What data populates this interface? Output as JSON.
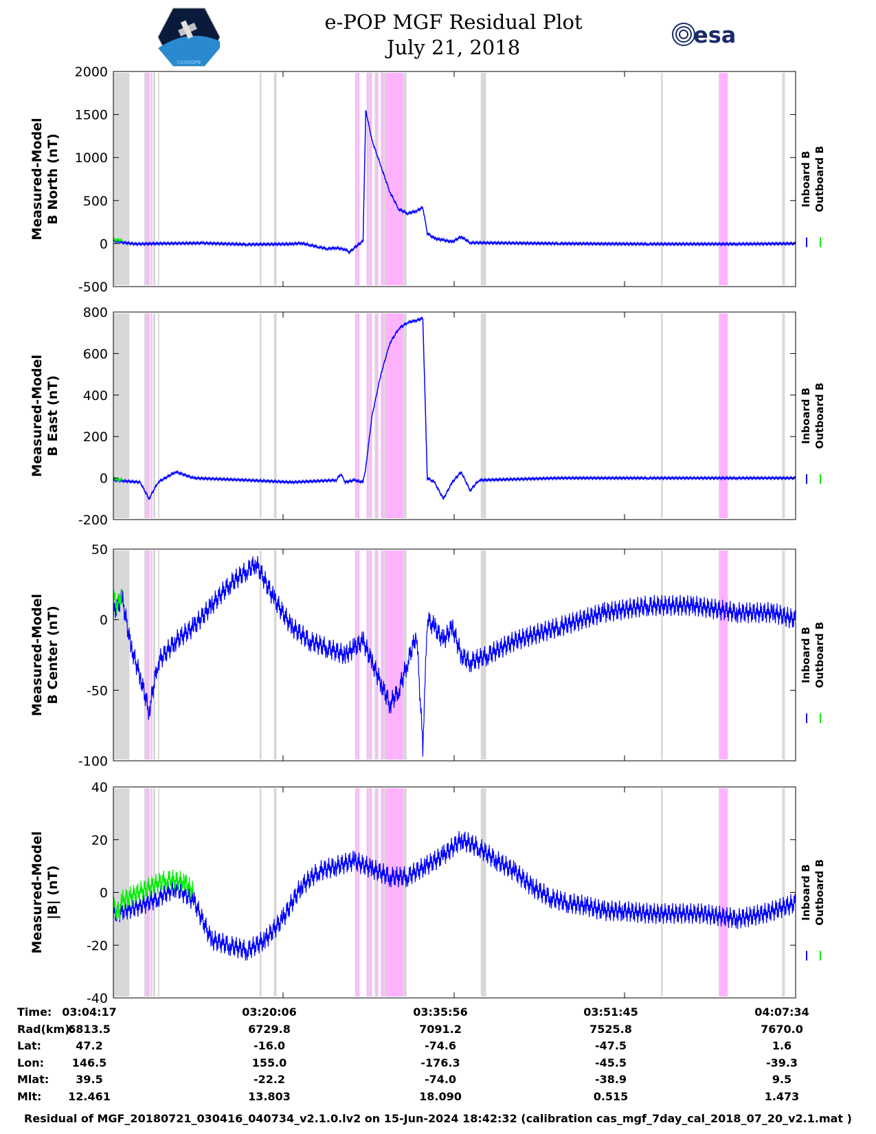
{
  "header": {
    "title": "e-POP MGF Residual Plot",
    "date": "July 21, 2018",
    "esa_logo_text": "esa",
    "cassiope_logo_text": "CASSIOPE"
  },
  "colors": {
    "inboard": "#0000ff",
    "outboard": "#00ee00",
    "gray_band": "#d8d8d8",
    "magenta_band": "#ffb3ff"
  },
  "legend": {
    "inboard": "Inboard B",
    "outboard": "Outboard B"
  },
  "chart_data": [
    {
      "type": "line",
      "id": "b-north",
      "ylabel": [
        "Measured-Model",
        "B North (nT)"
      ],
      "ylim": [
        -500,
        2000
      ],
      "yticks": [
        -500,
        0,
        500,
        1000,
        1500,
        2000
      ],
      "xlim_seconds": [
        0,
        3797
      ],
      "series": [
        {
          "name": "Inboard B",
          "color": "#0000ff",
          "points": [
            [
              0,
              35
            ],
            [
              120,
              10
            ],
            [
              250,
              -5
            ],
            [
              500,
              0
            ],
            [
              1000,
              5
            ],
            [
              1500,
              -10
            ],
            [
              2000,
              -5
            ],
            [
              2100,
              5
            ],
            [
              2200,
              -15
            ],
            [
              2300,
              -40
            ],
            [
              2400,
              -60
            ],
            [
              2500,
              -50
            ],
            [
              2600,
              -70
            ],
            [
              2650,
              -100
            ],
            [
              2700,
              -50
            ],
            [
              2800,
              30
            ],
            [
              2830,
              1550
            ],
            [
              2900,
              1200
            ],
            [
              3000,
              900
            ],
            [
              3100,
              600
            ],
            [
              3200,
              400
            ],
            [
              3300,
              350
            ],
            [
              3400,
              380
            ],
            [
              3470,
              420
            ],
            [
              3520,
              120
            ],
            [
              3600,
              60
            ],
            [
              3700,
              40
            ],
            [
              3800,
              20
            ],
            [
              3900,
              80
            ],
            [
              4000,
              10
            ],
            [
              5000,
              0
            ],
            [
              6000,
              -5
            ],
            [
              7000,
              -5
            ],
            [
              7650,
              0
            ]
          ]
        },
        {
          "name": "Outboard B",
          "color": "#00ee00",
          "points": [
            [
              0,
              45
            ],
            [
              60,
              40
            ],
            [
              100,
              35
            ]
          ]
        }
      ]
    },
    {
      "type": "line",
      "id": "b-east",
      "ylabel": [
        "Measured-Model",
        "B East (nT)"
      ],
      "ylim": [
        -200,
        800
      ],
      "yticks": [
        -200,
        0,
        200,
        400,
        600,
        800
      ],
      "series": [
        {
          "name": "Inboard B",
          "color": "#0000ff",
          "points": [
            [
              0,
              -10
            ],
            [
              300,
              -20
            ],
            [
              400,
              -100
            ],
            [
              500,
              -20
            ],
            [
              700,
              30
            ],
            [
              900,
              0
            ],
            [
              1500,
              -10
            ],
            [
              2000,
              -20
            ],
            [
              2500,
              -10
            ],
            [
              2550,
              20
            ],
            [
              2600,
              -20
            ],
            [
              2700,
              -10
            ],
            [
              2800,
              -20
            ],
            [
              2830,
              50
            ],
            [
              2900,
              300
            ],
            [
              3000,
              500
            ],
            [
              3100,
              650
            ],
            [
              3200,
              720
            ],
            [
              3300,
              750
            ],
            [
              3400,
              760
            ],
            [
              3470,
              770
            ],
            [
              3520,
              0
            ],
            [
              3600,
              -20
            ],
            [
              3700,
              -100
            ],
            [
              3800,
              -20
            ],
            [
              3900,
              30
            ],
            [
              4000,
              -60
            ],
            [
              4100,
              -10
            ],
            [
              5000,
              0
            ],
            [
              6000,
              0
            ],
            [
              7000,
              0
            ],
            [
              7650,
              0
            ]
          ]
        },
        {
          "name": "Outboard B",
          "color": "#00ee00",
          "points": [
            [
              0,
              0
            ],
            [
              60,
              -10
            ],
            [
              100,
              -5
            ]
          ]
        }
      ]
    },
    {
      "type": "line",
      "id": "b-center",
      "ylabel": [
        "Measured-Model",
        "B Center (nT)"
      ],
      "ylim": [
        -100,
        50
      ],
      "yticks": [
        -100,
        -50,
        0,
        50
      ],
      "series": [
        {
          "name": "Inboard B",
          "color": "#0000ff",
          "points": [
            [
              0,
              5
            ],
            [
              100,
              15
            ],
            [
              200,
              -20
            ],
            [
              300,
              -40
            ],
            [
              400,
              -65
            ],
            [
              500,
              -30
            ],
            [
              700,
              -15
            ],
            [
              900,
              -5
            ],
            [
              1100,
              10
            ],
            [
              1300,
              25
            ],
            [
              1500,
              35
            ],
            [
              1600,
              40
            ],
            [
              1800,
              15
            ],
            [
              2000,
              -5
            ],
            [
              2200,
              -15
            ],
            [
              2400,
              -20
            ],
            [
              2600,
              -25
            ],
            [
              2700,
              -20
            ],
            [
              2800,
              -15
            ],
            [
              2900,
              -30
            ],
            [
              3000,
              -45
            ],
            [
              3100,
              -60
            ],
            [
              3200,
              -50
            ],
            [
              3300,
              -30
            ],
            [
              3400,
              -10
            ],
            [
              3470,
              -90
            ],
            [
              3520,
              0
            ],
            [
              3600,
              -5
            ],
            [
              3700,
              -15
            ],
            [
              3800,
              -5
            ],
            [
              3900,
              -25
            ],
            [
              4000,
              -30
            ],
            [
              4200,
              -25
            ],
            [
              4500,
              -15
            ],
            [
              5000,
              -5
            ],
            [
              5500,
              5
            ],
            [
              6000,
              10
            ],
            [
              6500,
              10
            ],
            [
              7000,
              5
            ],
            [
              7400,
              5
            ],
            [
              7650,
              0
            ]
          ]
        },
        {
          "name": "Outboard B",
          "color": "#00ee00",
          "points": [
            [
              0,
              15
            ],
            [
              50,
              10
            ],
            [
              100,
              20
            ]
          ]
        }
      ]
    },
    {
      "type": "line",
      "id": "b-magnitude",
      "ylabel": [
        "Measured-Model",
        "|B| (nT)"
      ],
      "ylim": [
        -40,
        40
      ],
      "yticks": [
        -40,
        -20,
        0,
        20,
        40
      ],
      "series": [
        {
          "name": "Inboard B",
          "color": "#0000ff",
          "points": [
            [
              0,
              -8
            ],
            [
              300,
              -5
            ],
            [
              500,
              -2
            ],
            [
              700,
              2
            ],
            [
              900,
              -3
            ],
            [
              1100,
              -18
            ],
            [
              1300,
              -20
            ],
            [
              1500,
              -22
            ],
            [
              1700,
              -18
            ],
            [
              1900,
              -10
            ],
            [
              2100,
              2
            ],
            [
              2300,
              8
            ],
            [
              2500,
              10
            ],
            [
              2700,
              12
            ],
            [
              2900,
              9
            ],
            [
              3100,
              6
            ],
            [
              3300,
              6
            ],
            [
              3500,
              10
            ],
            [
              3700,
              14
            ],
            [
              3900,
              20
            ],
            [
              4100,
              17
            ],
            [
              4300,
              12
            ],
            [
              4500,
              8
            ],
            [
              4700,
              2
            ],
            [
              4900,
              -2
            ],
            [
              5100,
              -4
            ],
            [
              5300,
              -5
            ],
            [
              5500,
              -7
            ],
            [
              5700,
              -7
            ],
            [
              6000,
              -8
            ],
            [
              6300,
              -8
            ],
            [
              6600,
              -8
            ],
            [
              7000,
              -10
            ],
            [
              7300,
              -8
            ],
            [
              7650,
              -4
            ]
          ]
        },
        {
          "name": "Outboard B",
          "color": "#00ee00",
          "points": [
            [
              0,
              -5
            ],
            [
              60,
              -8
            ],
            [
              100,
              -3
            ],
            [
              400,
              2
            ],
            [
              600,
              5
            ],
            [
              800,
              4
            ],
            [
              900,
              0
            ]
          ]
        }
      ]
    }
  ],
  "bands": {
    "gray": [
      [
        0,
        180
      ],
      [
        345,
        370
      ],
      [
        395,
        405
      ],
      [
        445,
        470
      ],
      [
        500,
        510
      ],
      [
        1640,
        1660
      ],
      [
        1800,
        1830
      ],
      [
        2725,
        2740
      ],
      [
        2860,
        2880
      ],
      [
        2930,
        2950
      ],
      [
        3020,
        3050
      ],
      [
        3250,
        3290
      ],
      [
        4120,
        4180
      ],
      [
        6140,
        6160
      ],
      [
        7500,
        7530
      ]
    ],
    "magenta": [
      [
        370,
        395
      ],
      [
        420,
        430
      ],
      [
        2710,
        2725
      ],
      [
        2740,
        2760
      ],
      [
        2840,
        2860
      ],
      [
        2880,
        2900
      ],
      [
        2950,
        2970
      ],
      [
        3000,
        3020
      ],
      [
        3050,
        3250
      ],
      [
        6790,
        6890
      ]
    ]
  },
  "x_ticks": [
    "03:04:17",
    "03:20:06",
    "03:35:56",
    "03:51:45",
    "04:07:34"
  ],
  "info_table": [
    {
      "label": "Time:",
      "values": [
        "03:04:17",
        "03:20:06",
        "03:35:56",
        "03:51:45",
        "04:07:34"
      ]
    },
    {
      "label": "Rad(km):",
      "values": [
        "6813.5",
        "6729.8",
        "7091.2",
        "7525.8",
        "7670.0"
      ]
    },
    {
      "label": "Lat:",
      "values": [
        "47.2",
        "-16.0",
        "-74.6",
        "-47.5",
        "1.6"
      ]
    },
    {
      "label": "Lon:",
      "values": [
        "146.5",
        "155.0",
        "-176.3",
        "-45.5",
        "-39.3"
      ]
    },
    {
      "label": "Mlat:",
      "values": [
        "39.5",
        "-22.2",
        "-74.0",
        "-38.9",
        "9.5"
      ]
    },
    {
      "label": "Mlt:",
      "values": [
        "12.461",
        "13.803",
        "18.090",
        "0.515",
        "1.473"
      ]
    }
  ],
  "footer": "Residual of MGF_20180721_030416_040734_v2.1.0.lv2 on 15-Jun-2024 18:42:32 (calibration cas_mgf_7day_cal_2018_07_20_v2.1.mat )"
}
